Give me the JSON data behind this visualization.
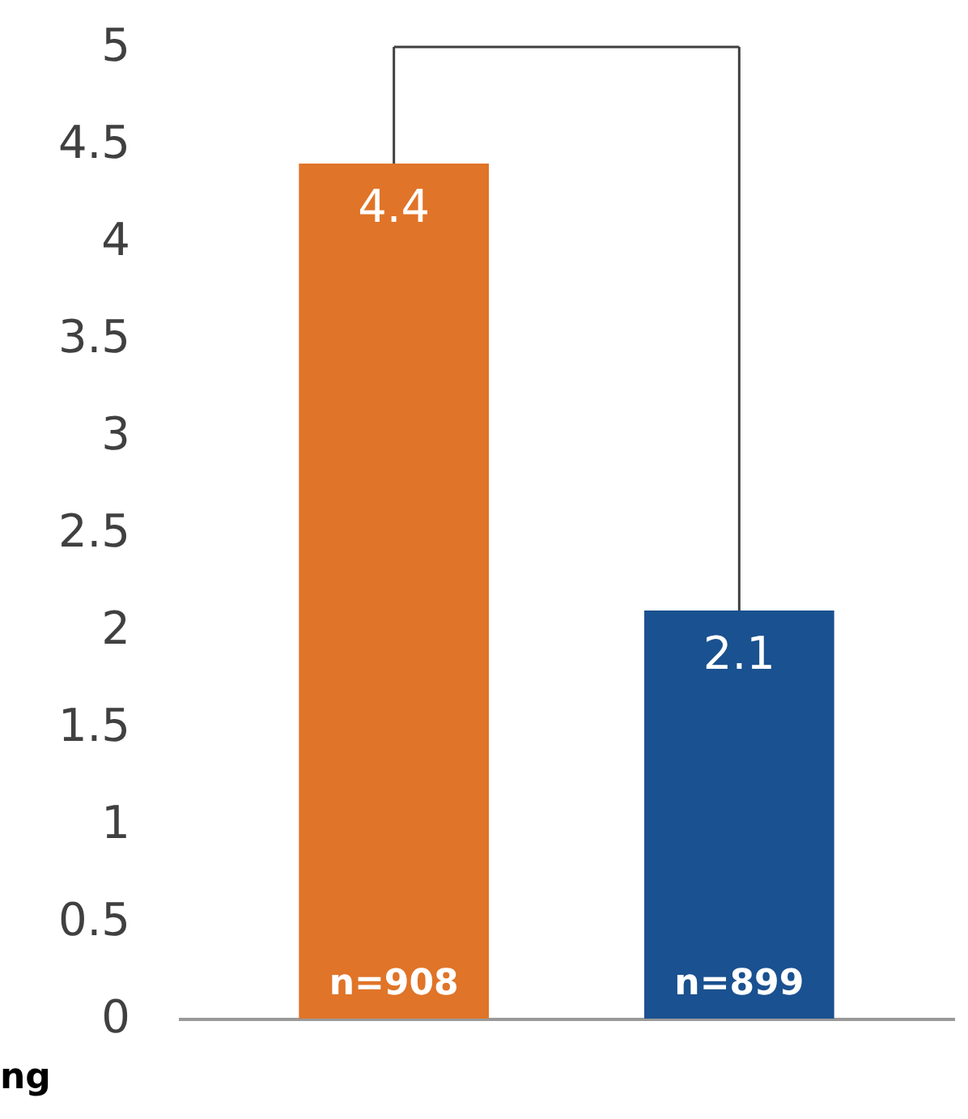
{
  "chart_data": {
    "type": "bar",
    "categories": [
      null,
      null
    ],
    "values": [
      4.4,
      2.1
    ],
    "colors": [
      "#e07428",
      "#1a5190"
    ],
    "data_labels": true,
    "ylim": [
      0,
      5
    ],
    "yticks": [
      0,
      0.5,
      1,
      1.5,
      2,
      2.5,
      3,
      3.5,
      4,
      4.5,
      5
    ],
    "grid": false,
    "annotations": [
      "n=908",
      "n=899",
      "ng"
    ]
  }
}
